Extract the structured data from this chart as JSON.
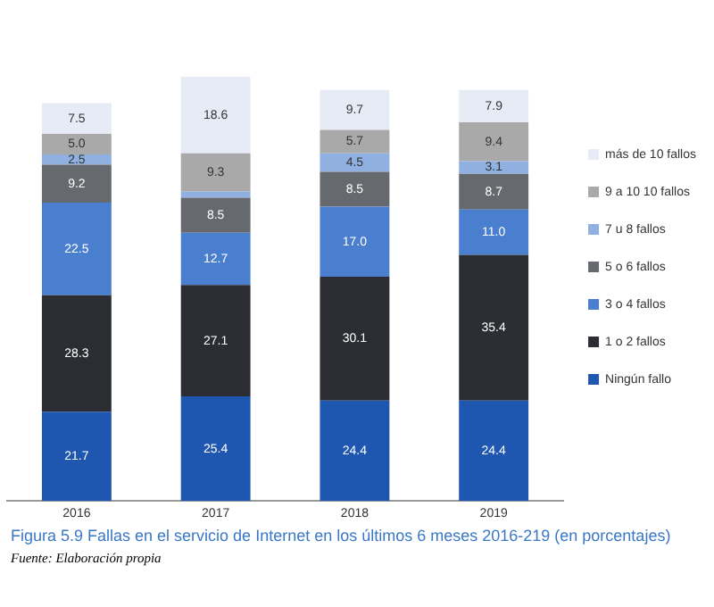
{
  "chart_data": {
    "type": "bar",
    "stacked": true,
    "categories": [
      "2016",
      "2017",
      "2018",
      "2019"
    ],
    "series": [
      {
        "name": "Ningún fallo",
        "color": "#1f56b0",
        "values": [
          21.7,
          25.4,
          24.4,
          24.4
        ]
      },
      {
        "name": "1 o 2 fallos",
        "color": "#2b2d33",
        "values": [
          28.3,
          27.1,
          30.1,
          35.4
        ]
      },
      {
        "name": "3 o 4 fallos",
        "color": "#4a7fcf",
        "values": [
          22.5,
          12.7,
          17.0,
          11.0
        ],
        "value_labels": [
          "22.5",
          "12.7",
          "17.0",
          "11.0"
        ]
      },
      {
        "name": "5 o 6 fallos",
        "color": "#66696d",
        "values": [
          9.2,
          8.5,
          8.5,
          8.7
        ]
      },
      {
        "name": "7 u 8 fallos",
        "color": "#8fb0e0",
        "values": [
          2.5,
          1.5,
          4.5,
          3.1
        ],
        "value_labels": [
          "2.5",
          null,
          "4.5",
          "3.1"
        ]
      },
      {
        "name": "9 a 10 10 fallos",
        "color": "#a9a9a9",
        "values": [
          5.0,
          9.3,
          5.7,
          9.4
        ],
        "value_labels": [
          "5.0",
          "9.3",
          "5.7",
          "9.4"
        ]
      },
      {
        "name": "más de 10 fallos",
        "color": "#e6ebf5",
        "values": [
          7.5,
          18.6,
          9.7,
          7.9
        ]
      }
    ],
    "legend": "right",
    "grid": false,
    "data_labels": true,
    "annotations": [
      "Figura 5.9 Fallas en el servicio de Internet en los últimos 6 meses 2016-219 (en porcentajes)",
      "Fuente: Elaboración propia"
    ]
  }
}
